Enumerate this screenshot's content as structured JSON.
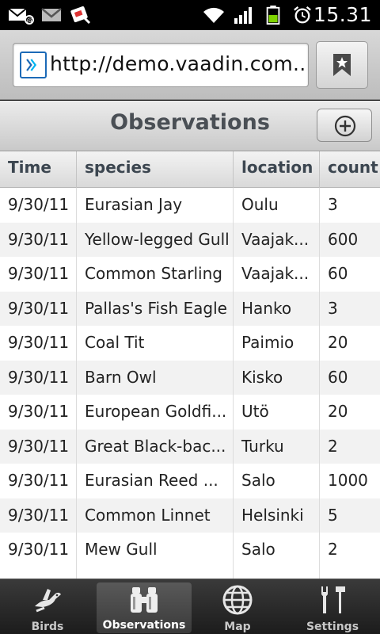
{
  "status_bar": {
    "time": "15.31",
    "icons": [
      "email-at-icon",
      "gmail-icon",
      "download-icon",
      "wifi-icon",
      "signal-icon",
      "battery-icon",
      "alarm-icon"
    ]
  },
  "browser": {
    "url": "http://demo.vaadin.com..."
  },
  "header": {
    "title": "Observations"
  },
  "table": {
    "columns": [
      "Time",
      "species",
      "location",
      "count"
    ],
    "rows": [
      [
        "9/30/11",
        "Eurasian Jay",
        "Oulu",
        "3"
      ],
      [
        "9/30/11",
        "Yellow-legged Gull",
        "Vaajak...",
        "600"
      ],
      [
        "9/30/11",
        "Common Starling",
        "Vaajak...",
        "60"
      ],
      [
        "9/30/11",
        "Pallas's Fish Eagle",
        "Hanko",
        "3"
      ],
      [
        "9/30/11",
        "Coal Tit",
        "Paimio",
        "20"
      ],
      [
        "9/30/11",
        "Barn Owl",
        "Kisko",
        "60"
      ],
      [
        "9/30/11",
        "European Goldfi...",
        "Utö",
        "20"
      ],
      [
        "9/30/11",
        "Great Black-bac...",
        "Turku",
        "2"
      ],
      [
        "9/30/11",
        "Eurasian Reed ...",
        "Salo",
        "1000"
      ],
      [
        "9/30/11",
        "Common Linnet",
        "Helsinki",
        "5"
      ],
      [
        "9/30/11",
        "Mew Gull",
        "Salo",
        "2"
      ]
    ]
  },
  "tabs": [
    {
      "label": "Birds",
      "icon": "bird-icon",
      "active": false
    },
    {
      "label": "Observations",
      "icon": "binoculars-icon",
      "active": true
    },
    {
      "label": "Map",
      "icon": "globe-icon",
      "active": false
    },
    {
      "label": "Settings",
      "icon": "tools-icon",
      "active": false
    }
  ]
}
